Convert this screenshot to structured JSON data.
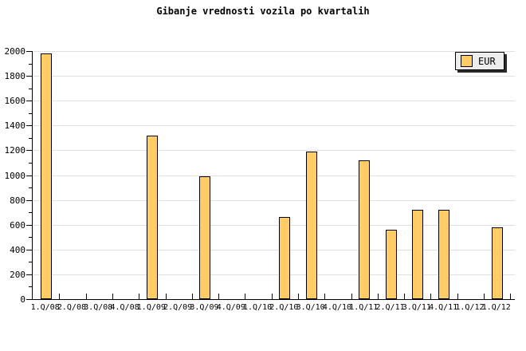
{
  "title": "Gibanje vrednosti vozila po kvartalih",
  "legend": {
    "label": "EUR"
  },
  "colors": {
    "bar_fill": "#FFCC66",
    "bar_border": "#000000",
    "gridline": "#E0E0E0",
    "axis": "#000000",
    "legend_bg": "#EDEDED",
    "background": "#FFFFFF"
  },
  "chart_data": {
    "type": "bar",
    "title": "Gibanje vrednosti vozila po kvartalih",
    "categories": [
      "1.Q/08",
      "2.Q/08",
      "3.Q/08",
      "4.Q/08",
      "1.Q/09",
      "2.Q/09",
      "3.Q/09",
      "4.Q/09",
      "1.Q/10",
      "2.Q/10",
      "3.Q/10",
      "4.Q/10",
      "1.Q/11",
      "2.Q/11",
      "3.Q/11",
      "4.Q/11",
      "1.Q/12",
      "1.Q/12"
    ],
    "series": [
      {
        "name": "EUR",
        "values": [
          1980,
          null,
          null,
          null,
          1320,
          null,
          990,
          null,
          null,
          660,
          1190,
          null,
          1120,
          560,
          720,
          720,
          null,
          580
        ]
      }
    ],
    "xlabel": "",
    "ylabel": "",
    "ylim": [
      0,
      2000
    ],
    "y_major_step": 200,
    "y_minor_step": 100,
    "y_tick_labels": [
      "0",
      "200",
      "400",
      "600",
      "800",
      "1000",
      "1200",
      "1400",
      "1600",
      "1800",
      "2000"
    ],
    "grid": "horizontal-major",
    "legend_position": "top-right",
    "legend_entries": [
      "EUR"
    ]
  }
}
